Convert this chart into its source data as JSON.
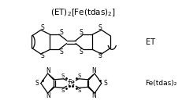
{
  "title": "(ET)₂[Fe(tdas)₂]",
  "label_ET": "ET",
  "label_Fe": "Fe(tdas)₂",
  "bg_color": "#ffffff",
  "line_color": "#000000",
  "fig_width": 2.32,
  "fig_height": 1.42,
  "dpi": 100
}
